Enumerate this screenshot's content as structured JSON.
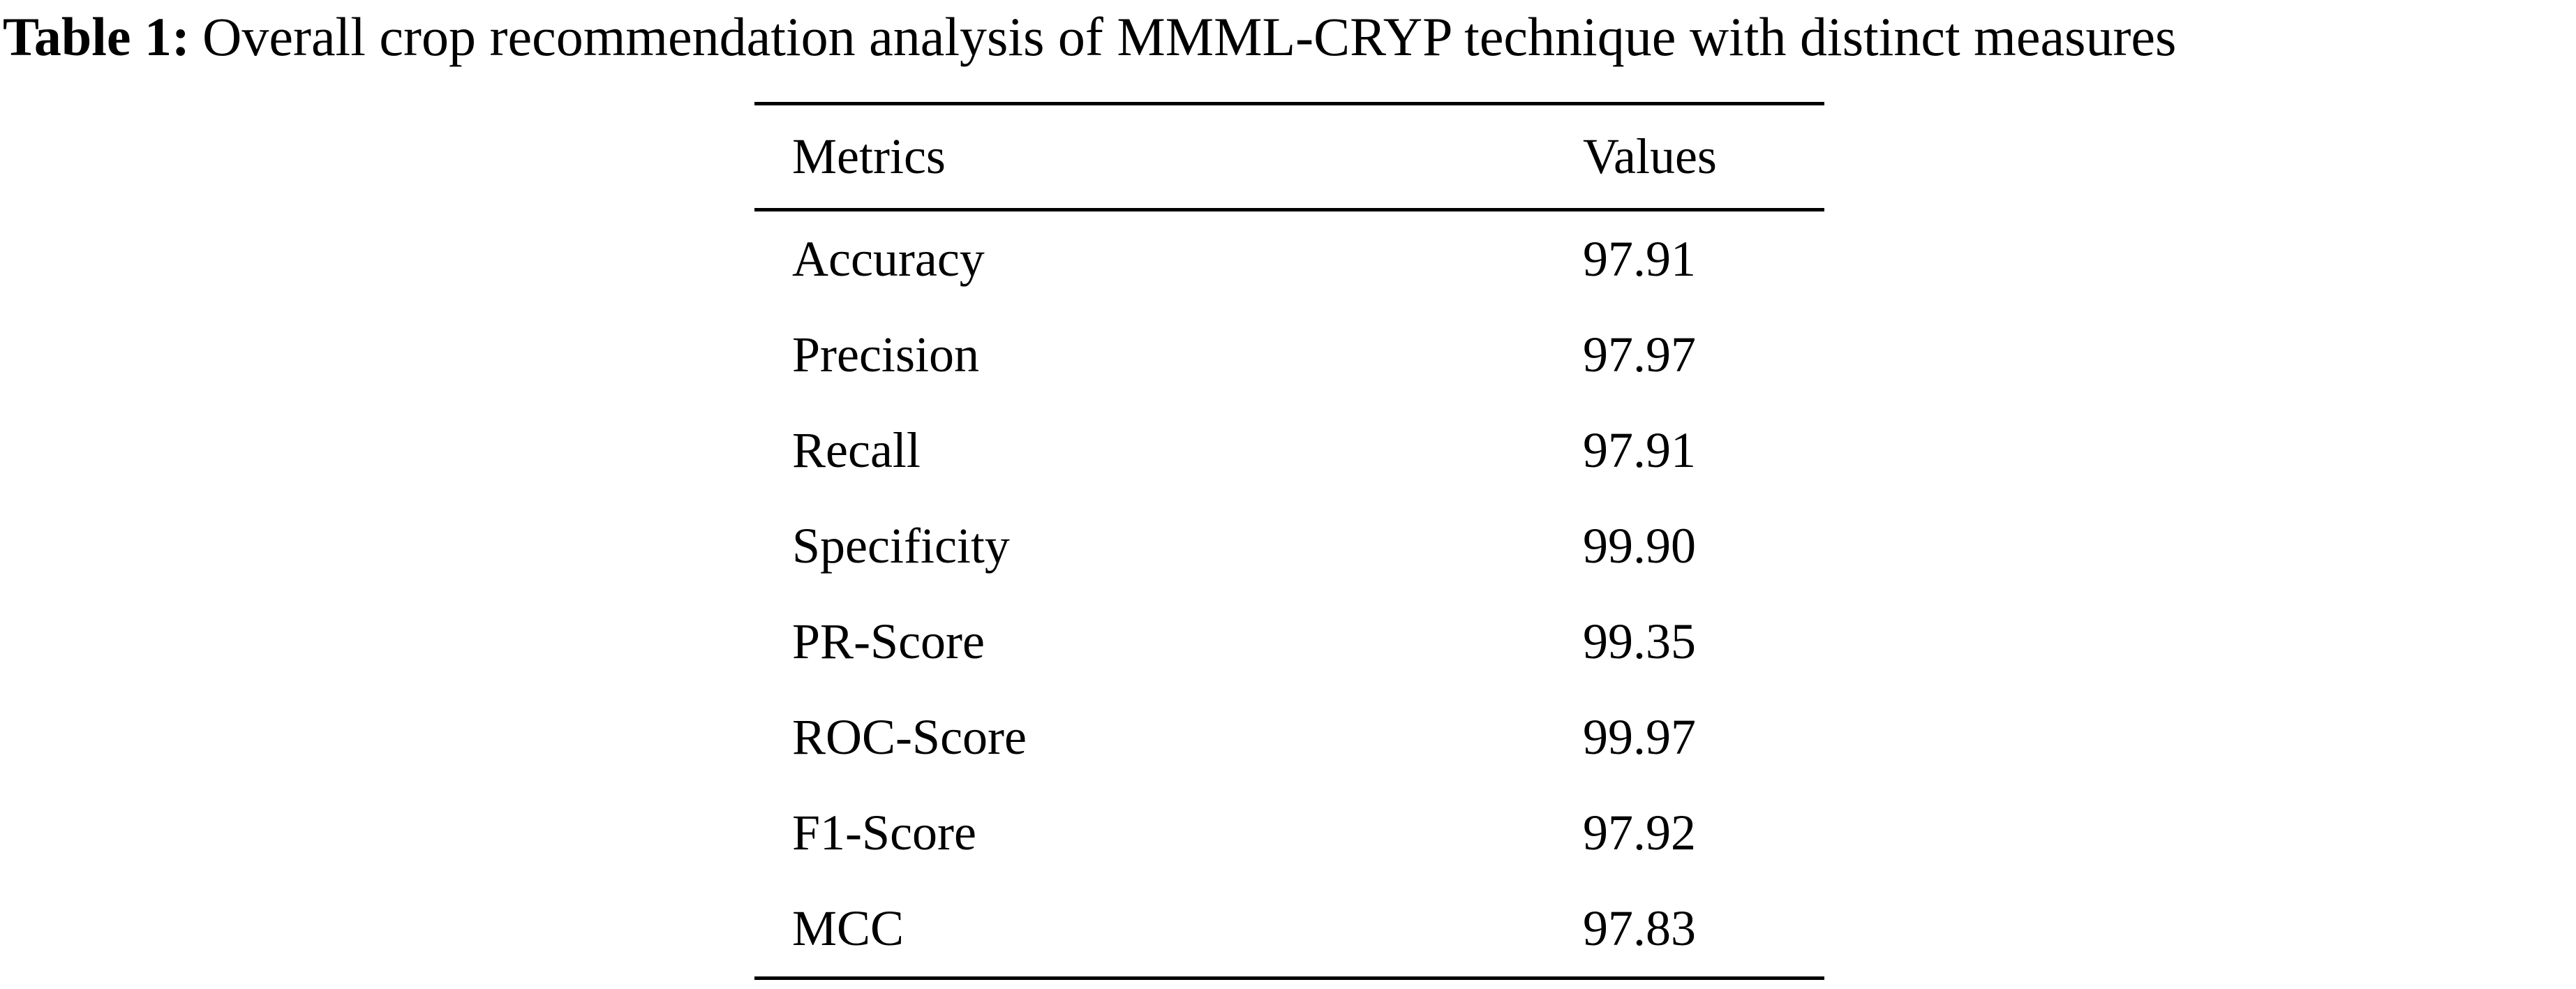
{
  "caption": {
    "label": "Table 1:",
    "text": "Overall crop recommendation analysis of MMML-CRYP technique with distinct measures"
  },
  "table": {
    "headers": {
      "metric": "Metrics",
      "value": "Values"
    },
    "rows": [
      {
        "metric": "Accuracy",
        "value": "97.91"
      },
      {
        "metric": "Precision",
        "value": "97.97"
      },
      {
        "metric": "Recall",
        "value": "97.91"
      },
      {
        "metric": "Specificity",
        "value": "99.90"
      },
      {
        "metric": "PR-Score",
        "value": "99.35"
      },
      {
        "metric": "ROC-Score",
        "value": "99.97"
      },
      {
        "metric": "F1-Score",
        "value": "97.92"
      },
      {
        "metric": "MCC",
        "value": "97.83"
      }
    ]
  },
  "chart_data": {
    "type": "table",
    "title": "Table 1: Overall crop recommendation analysis of MMML-CRYP technique with distinct measures",
    "columns": [
      "Metrics",
      "Values"
    ],
    "rows": [
      [
        "Accuracy",
        97.91
      ],
      [
        "Precision",
        97.97
      ],
      [
        "Recall",
        97.91
      ],
      [
        "Specificity",
        99.9
      ],
      [
        "PR-Score",
        99.35
      ],
      [
        "ROC-Score",
        99.97
      ],
      [
        "F1-Score",
        97.92
      ],
      [
        "MCC",
        97.83
      ]
    ]
  },
  "colors": {
    "background": "#ffffff",
    "text": "#000000",
    "rule": "#000000"
  }
}
